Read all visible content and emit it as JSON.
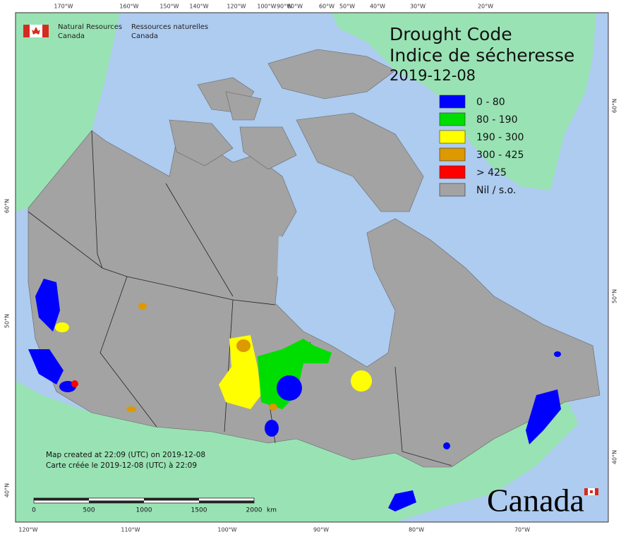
{
  "header": {
    "title": "Drought Code",
    "subtitle": "Indice de sécheresse",
    "date": "2019-12-08"
  },
  "logo": {
    "line1_en": "Natural Resources",
    "line2_en": "Canada",
    "line1_fr": "Ressources naturelles",
    "line2_fr": "Canada"
  },
  "legend": {
    "items": [
      {
        "label": "0 - 80",
        "color": "#0000ff"
      },
      {
        "label": "80 - 190",
        "color": "#00dd00"
      },
      {
        "label": "190 - 300",
        "color": "#ffff00"
      },
      {
        "label": "300 - 425",
        "color": "#dd9900"
      },
      {
        "label": "> 425",
        "color": "#ff0000"
      },
      {
        "label": "Nil / s.o.",
        "color": "#a3a3a3"
      }
    ]
  },
  "graticule": {
    "top": [
      "170°W",
      "160°W",
      "150°W",
      "140°W",
      "120°W",
      "100°W",
      "90°W",
      "80°W",
      "60°W",
      "50°W",
      "40°W",
      "30°W",
      "20°W"
    ],
    "bottom": [
      "120°W",
      "110°W",
      "100°W",
      "90°W",
      "80°W",
      "70°W"
    ],
    "left": [
      "60°N",
      "50°N",
      "40°N"
    ],
    "right": [
      "60°N",
      "50°N",
      "40°N"
    ]
  },
  "scale_bar": {
    "labels": [
      "0",
      "500",
      "1000",
      "1500",
      "2000"
    ],
    "unit": "km"
  },
  "notes": [
    "Map created at 22:09 (UTC) on 2019-12-08",
    "Carte créée le 2019-12-08 (UTC) à 22:09"
  ],
  "wordmark": "Canada"
}
